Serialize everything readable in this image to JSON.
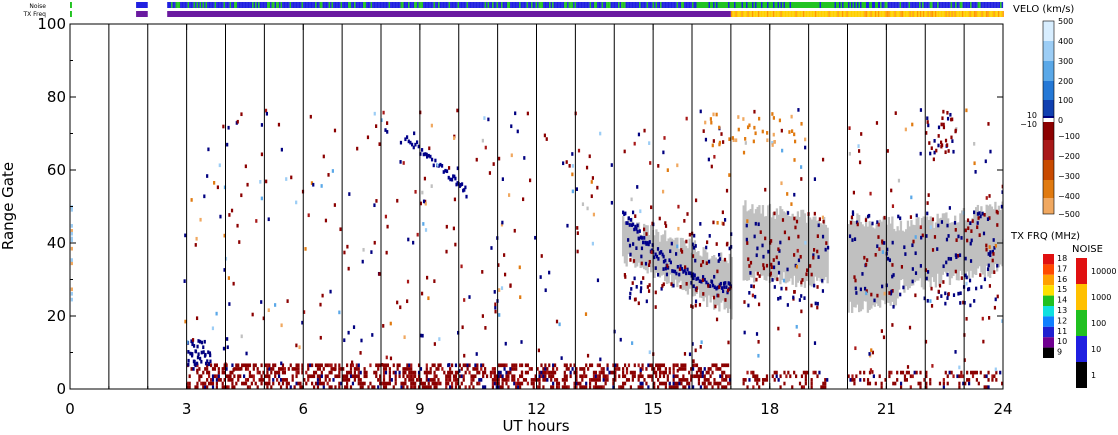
{
  "chart_data": {
    "type": "scatter",
    "xlabel": "UT hours",
    "ylabel": "Range Gate",
    "xlim": [
      0,
      24
    ],
    "ylim": [
      0,
      100
    ],
    "xticks": [
      0,
      3,
      6,
      9,
      12,
      15,
      18,
      21,
      24
    ],
    "yticks": [
      0,
      20,
      40,
      60,
      80,
      100
    ],
    "scan_boundaries_hours": [
      1,
      2,
      3,
      4,
      5,
      6,
      7,
      8,
      9,
      10,
      11,
      12,
      13,
      14,
      15,
      16,
      17,
      18,
      19,
      20,
      21,
      22,
      23
    ],
    "top_strips": [
      {
        "label": "Noise",
        "segments": [
          {
            "start": 0,
            "end": 0.05,
            "color": "#22c322"
          },
          {
            "start": 1.7,
            "end": 2.0,
            "color": "#2020e0"
          },
          {
            "start": 2.5,
            "end": 2.6,
            "color": "#2020e0"
          },
          {
            "start": 2.6,
            "end": 16.0,
            "color": "#2020e0",
            "mix": "#22c322"
          },
          {
            "start": 16.0,
            "end": 20.8,
            "color": "#22c322",
            "mix": "#2020e0"
          },
          {
            "start": 20.8,
            "end": 24.0,
            "color": "#2020e0",
            "mix": "#22c322"
          }
        ]
      },
      {
        "label": "TX Freq",
        "segments": [
          {
            "start": 0,
            "end": 0.05,
            "color": "#22c322"
          },
          {
            "start": 1.7,
            "end": 2.0,
            "color": "#6a1aa0"
          },
          {
            "start": 2.5,
            "end": 17.0,
            "color": "#6a1aa0"
          },
          {
            "start": 17.0,
            "end": 24.0,
            "color": "#ffd000",
            "mix": "#ff9a00"
          }
        ]
      }
    ],
    "series": [
      {
        "name": "",
        "kind": "ground-scatter-band",
        "color": "#c0c0c0",
        "segments": [
          {
            "x": [
              14.2,
              17.0
            ],
            "lower_edge": [
              36,
              21
            ],
            "upper_edge": [
              46,
              35
            ]
          },
          {
            "x": [
              17.3,
              19.5
            ],
            "lower_edge": [
              31,
              29
            ],
            "upper_edge": [
              50,
              46
            ]
          },
          {
            "x": [
              20.0,
              21.3
            ],
            "lower_edge": [
              22,
              23
            ],
            "upper_edge": [
              47,
              45
            ]
          },
          {
            "x": [
              21.3,
              24.0
            ],
            "lower_edge": [
              28,
              33
            ],
            "upper_edge": [
              44,
              50
            ]
          }
        ]
      },
      {
        "name": "",
        "kind": "near-range-band",
        "color": "#8b0000",
        "x": [
          3.0,
          17.0
        ],
        "gates": [
          0,
          6
        ],
        "extra": [
          {
            "x": [
              17.3,
              19.5
            ],
            "gates": [
              0,
              4
            ]
          },
          {
            "x": [
              20.0,
              24.0
            ],
            "gates": [
              0,
              4
            ]
          }
        ]
      },
      {
        "name": "",
        "kind": "curved-echo-track",
        "color": "#00008b",
        "points": [
          [
            14.2,
            47
          ],
          [
            14.6,
            42
          ],
          [
            15.0,
            37
          ],
          [
            15.5,
            33
          ],
          [
            16.0,
            30
          ],
          [
            16.6,
            28
          ],
          [
            17.0,
            27
          ]
        ]
      },
      {
        "name": "",
        "kind": "descending-track",
        "color": "#00008b",
        "points": [
          [
            8.6,
            69
          ],
          [
            9.2,
            63
          ],
          [
            9.8,
            57
          ],
          [
            10.2,
            53
          ]
        ]
      }
    ],
    "colorbars": [
      {
        "title": "VELO (km/s)",
        "labels": [
          "500",
          "400",
          "300",
          "200",
          "100",
          "0",
          "10",
          "−10",
          "−100",
          "−200",
          "−300",
          "−400",
          "−500"
        ],
        "colors": [
          "#d8eeff",
          "#9ccdf5",
          "#5aa8e8",
          "#2478d6",
          "#1040b0",
          "#000080",
          "#ffffff",
          "#8b0000",
          "#a81818",
          "#c84a00",
          "#e07a10",
          "#f0a860",
          "#fbd8b0"
        ]
      },
      {
        "title": "TX FRQ (MHz)",
        "labels": [
          "18",
          "17",
          "16",
          "15",
          "14",
          "13",
          "12",
          "11",
          "10",
          "9"
        ],
        "colors": [
          "#e01010",
          "#ff4a00",
          "#ffa000",
          "#ffe000",
          "#20c020",
          "#10e0e0",
          "#1080ff",
          "#2020d0",
          "#700090",
          "#000000"
        ]
      },
      {
        "title": "NOISE",
        "labels": [
          "10000",
          "1000",
          "100",
          "10",
          "1"
        ],
        "colors": [
          "#e01010",
          "#ffc000",
          "#20c020",
          "#2020e0",
          "#000000"
        ]
      }
    ]
  }
}
